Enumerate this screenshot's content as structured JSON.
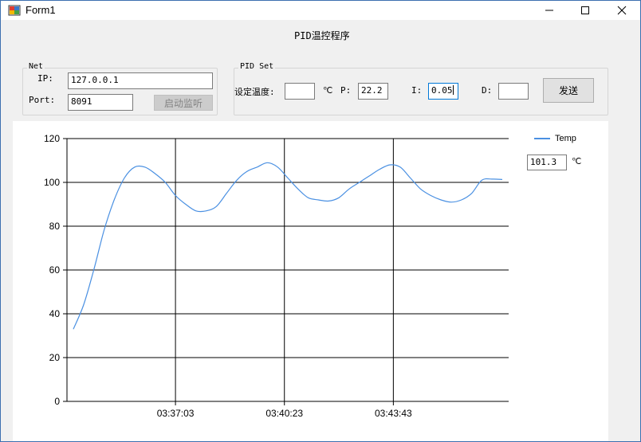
{
  "window": {
    "title": "Form1"
  },
  "form": {
    "heading": "PID温控程序"
  },
  "net": {
    "group_title": "Net",
    "ip_label": "IP:",
    "ip_value": "127.0.0.1",
    "port_label": "Port:",
    "port_value": "8091",
    "start_button": "启动监听"
  },
  "pid": {
    "group_title": "PID Set",
    "setpoint_label": "设定温度:",
    "setpoint_value": "",
    "unit": "℃",
    "p_label": "P:",
    "p_value": "22.2",
    "i_label": "I:",
    "i_value": "0.05",
    "d_label": "D:",
    "d_value": "",
    "send_button": "发送"
  },
  "readout": {
    "value": "101.3",
    "unit": "℃"
  },
  "colors": {
    "series": "#4a90e2",
    "accent": "#0078d7"
  },
  "chart_data": {
    "type": "line",
    "legend": "Temp",
    "ylim": [
      0,
      120
    ],
    "yticks": [
      0,
      20,
      40,
      60,
      80,
      100,
      120
    ],
    "xticks": [
      "03:37:03",
      "03:40:23",
      "03:43:43"
    ],
    "grid": true,
    "series": [
      {
        "name": "Temp",
        "x_index": [
          0,
          3,
          6,
          9,
          12,
          15,
          18,
          21,
          24,
          27,
          30,
          33,
          36,
          39,
          42,
          45,
          48,
          51,
          54,
          57,
          60,
          63,
          66,
          69,
          72,
          75,
          78,
          81,
          84,
          87,
          90,
          93,
          96,
          99,
          102,
          105,
          108,
          111,
          114,
          117,
          120,
          123,
          126
        ],
        "values": [
          33,
          44,
          60,
          78,
          92,
          102,
          107,
          107,
          104,
          100,
          94,
          90,
          87,
          87,
          89,
          95,
          101,
          105,
          107,
          109,
          107,
          102,
          97,
          93,
          92,
          91.5,
          93,
          97,
          100,
          103,
          106,
          108,
          107,
          102,
          97,
          94,
          92,
          91,
          92,
          95,
          101,
          101.5,
          101.3
        ]
      }
    ],
    "x_tick_index": [
      30,
      62,
      94
    ]
  }
}
